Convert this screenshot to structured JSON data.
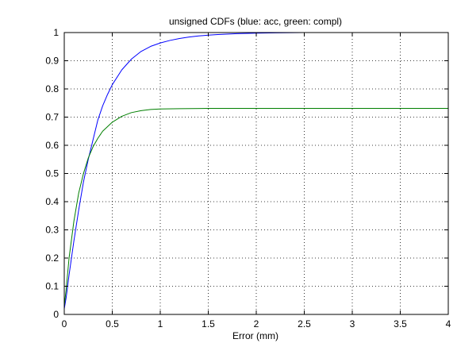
{
  "chart_data": {
    "type": "line",
    "title": "unsigned CDFs (blue: acc, green: compl)",
    "xlabel": "Error (mm)",
    "ylabel": "",
    "xlim": [
      0,
      4
    ],
    "ylim": [
      0,
      1
    ],
    "xticks": [
      "0",
      "0.5",
      "1",
      "1.5",
      "2",
      "2.5",
      "3",
      "3.5",
      "4"
    ],
    "yticks": [
      "0",
      "0.1",
      "0.2",
      "0.3",
      "0.4",
      "0.5",
      "0.6",
      "0.7",
      "0.8",
      "0.9",
      "1"
    ],
    "grid": true,
    "legend": "none",
    "series": [
      {
        "color": "#0000ff",
        "x": [
          0,
          0.02,
          0.05,
          0.1,
          0.15,
          0.2,
          0.25,
          0.3,
          0.35,
          0.4,
          0.45,
          0.5,
          0.6,
          0.7,
          0.8,
          0.9,
          1.0,
          1.1,
          1.2,
          1.3,
          1.4,
          1.5,
          1.6,
          1.8,
          2.0,
          2.2,
          2.5,
          3.0,
          3.5,
          4.0
        ],
        "y": [
          0.02,
          0.06,
          0.14,
          0.26,
          0.37,
          0.47,
          0.55,
          0.62,
          0.69,
          0.74,
          0.78,
          0.815,
          0.868,
          0.906,
          0.933,
          0.951,
          0.963,
          0.972,
          0.979,
          0.984,
          0.988,
          0.991,
          0.993,
          0.996,
          0.998,
          0.999,
          1.0,
          1.0,
          1.0,
          1.0
        ]
      },
      {
        "color": "#007f00",
        "x": [
          0,
          0.02,
          0.05,
          0.1,
          0.15,
          0.2,
          0.25,
          0.3,
          0.35,
          0.4,
          0.5,
          0.6,
          0.7,
          0.8,
          0.9,
          1.0,
          1.2,
          1.5,
          2.0,
          2.5,
          3.0,
          3.5,
          4.0
        ],
        "y": [
          0.03,
          0.09,
          0.2,
          0.33,
          0.43,
          0.5,
          0.555,
          0.595,
          0.625,
          0.65,
          0.682,
          0.703,
          0.716,
          0.723,
          0.727,
          0.729,
          0.73,
          0.731,
          0.731,
          0.731,
          0.731,
          0.731,
          0.731
        ]
      }
    ]
  }
}
